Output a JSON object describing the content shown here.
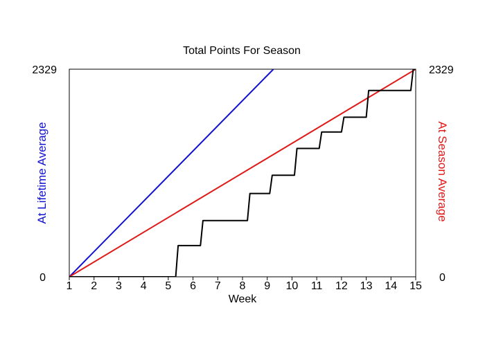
{
  "chart_data": {
    "type": "line",
    "title": "Total Points For Season",
    "xlabel": "Week",
    "ylabel_left": "At Lifetime Average",
    "ylabel_right": "At Season Average",
    "xlim": [
      1,
      15
    ],
    "ylim": [
      0,
      2329
    ],
    "x_ticks": [
      1,
      2,
      3,
      4,
      5,
      6,
      7,
      8,
      9,
      10,
      11,
      12,
      13,
      14,
      15
    ],
    "y_tick_labels_left": [
      "0",
      "2329"
    ],
    "y_tick_labels_right": [
      "0",
      "2329"
    ],
    "grid": false,
    "colors": {
      "lifetime": "#1010d0",
      "season": "#e01818",
      "actual": "#000000",
      "left_label": "#1010d0",
      "right_label": "#e01818"
    },
    "series": [
      {
        "key": "lifetime",
        "x": [
          1,
          9.25
        ],
        "y": [
          0,
          2329
        ]
      },
      {
        "key": "season",
        "x": [
          1,
          15
        ],
        "y": [
          0,
          2329
        ]
      },
      {
        "key": "actual",
        "x": [
          1,
          5.3,
          5.4,
          6.3,
          6.4,
          8.2,
          8.3,
          9.1,
          9.2,
          10.1,
          10.2,
          11.1,
          11.2,
          12.0,
          12.1,
          13.0,
          13.1,
          14.8,
          14.9,
          15.0
        ],
        "y": [
          0,
          0,
          350,
          350,
          630,
          630,
          935,
          935,
          1140,
          1140,
          1440,
          1440,
          1625,
          1625,
          1790,
          1790,
          2090,
          2090,
          2329,
          2329
        ]
      }
    ]
  }
}
